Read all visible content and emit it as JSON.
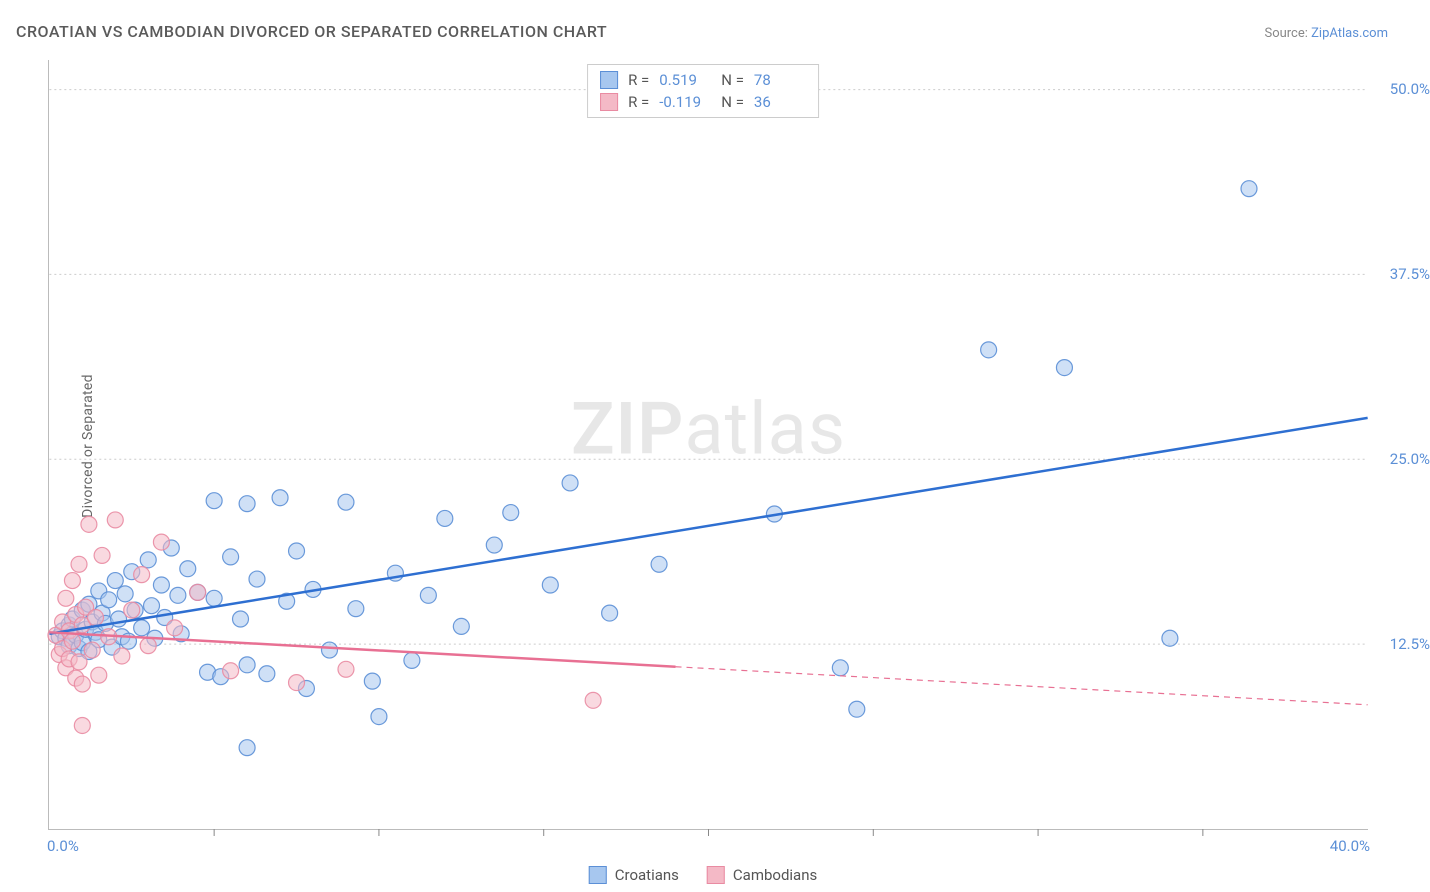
{
  "title": "CROATIAN VS CAMBODIAN DIVORCED OR SEPARATED CORRELATION CHART",
  "source_prefix": "Source: ",
  "source_link": "ZipAtlas.com",
  "ylabel": "Divorced or Separated",
  "watermark_zip": "ZIP",
  "watermark_atlas": "atlas",
  "chart": {
    "type": "scatter",
    "xlim": [
      0,
      40
    ],
    "ylim": [
      0,
      52
    ],
    "xtick_labels": [
      {
        "v": 0.0,
        "t": "0.0%"
      },
      {
        "v": 40.0,
        "t": "40.0%"
      }
    ],
    "xtick_minor": [
      5,
      10,
      15,
      20,
      25,
      30,
      35
    ],
    "ytick_labels": [
      {
        "v": 12.5,
        "t": "12.5%"
      },
      {
        "v": 25.0,
        "t": "25.0%"
      },
      {
        "v": 37.5,
        "t": "37.5%"
      },
      {
        "v": 50.0,
        "t": "50.0%"
      }
    ],
    "ytick_minor": [],
    "grid_color": "#cccccc",
    "background_color": "#ffffff",
    "marker_radius": 8,
    "marker_opacity": 0.55,
    "marker_stroke_opacity": 0.9,
    "line_width": 2.5,
    "series": [
      {
        "name": "Croatians",
        "color_fill": "#a7c7ef",
        "color_stroke": "#5b8fd6",
        "line_color": "#2e6fd1",
        "R": "0.519",
        "N": "78",
        "regression": {
          "x1": 0,
          "y1": 13.2,
          "x2": 40,
          "y2": 27.8,
          "dash_after_x": null
        },
        "points": [
          [
            0.3,
            13.0
          ],
          [
            0.4,
            13.4
          ],
          [
            0.5,
            12.9
          ],
          [
            0.6,
            13.8
          ],
          [
            0.6,
            12.4
          ],
          [
            0.7,
            14.2
          ],
          [
            0.8,
            13.1
          ],
          [
            0.9,
            12.2
          ],
          [
            1.0,
            14.8
          ],
          [
            1.0,
            12.6
          ],
          [
            1.1,
            13.5
          ],
          [
            1.2,
            15.2
          ],
          [
            1.2,
            12.0
          ],
          [
            1.3,
            14.0
          ],
          [
            1.4,
            13.3
          ],
          [
            1.5,
            16.1
          ],
          [
            1.5,
            12.8
          ],
          [
            1.6,
            14.6
          ],
          [
            1.7,
            13.9
          ],
          [
            1.8,
            15.5
          ],
          [
            1.9,
            12.3
          ],
          [
            2.0,
            16.8
          ],
          [
            2.1,
            14.2
          ],
          [
            2.2,
            13.0
          ],
          [
            2.3,
            15.9
          ],
          [
            2.4,
            12.7
          ],
          [
            2.5,
            17.4
          ],
          [
            2.6,
            14.8
          ],
          [
            2.8,
            13.6
          ],
          [
            3.0,
            18.2
          ],
          [
            3.1,
            15.1
          ],
          [
            3.2,
            12.9
          ],
          [
            3.4,
            16.5
          ],
          [
            3.5,
            14.3
          ],
          [
            3.7,
            19.0
          ],
          [
            3.9,
            15.8
          ],
          [
            4.0,
            13.2
          ],
          [
            4.2,
            17.6
          ],
          [
            4.5,
            16.0
          ],
          [
            4.8,
            10.6
          ],
          [
            5.0,
            22.2
          ],
          [
            5.0,
            15.6
          ],
          [
            5.2,
            10.3
          ],
          [
            5.5,
            18.4
          ],
          [
            5.8,
            14.2
          ],
          [
            6.0,
            22.0
          ],
          [
            6.0,
            11.1
          ],
          [
            6.3,
            16.9
          ],
          [
            6.6,
            10.5
          ],
          [
            7.0,
            22.4
          ],
          [
            7.2,
            15.4
          ],
          [
            7.5,
            18.8
          ],
          [
            7.8,
            9.5
          ],
          [
            8.0,
            16.2
          ],
          [
            8.5,
            12.1
          ],
          [
            9.0,
            22.1
          ],
          [
            9.3,
            14.9
          ],
          [
            9.8,
            10.0
          ],
          [
            10.0,
            7.6
          ],
          [
            10.5,
            17.3
          ],
          [
            11.0,
            11.4
          ],
          [
            11.5,
            15.8
          ],
          [
            12.0,
            21.0
          ],
          [
            12.5,
            13.7
          ],
          [
            13.5,
            19.2
          ],
          [
            14.0,
            21.4
          ],
          [
            15.2,
            16.5
          ],
          [
            15.8,
            23.4
          ],
          [
            17.0,
            14.6
          ],
          [
            18.5,
            17.9
          ],
          [
            22.0,
            21.3
          ],
          [
            24.0,
            10.9
          ],
          [
            24.5,
            8.1
          ],
          [
            28.5,
            32.4
          ],
          [
            30.8,
            31.2
          ],
          [
            34.0,
            12.9
          ],
          [
            36.4,
            43.3
          ],
          [
            6.0,
            5.5
          ]
        ]
      },
      {
        "name": "Cambodians",
        "color_fill": "#f4b9c6",
        "color_stroke": "#e98ba2",
        "line_color": "#e87093",
        "R": "-0.119",
        "N": "36",
        "regression": {
          "x1": 0,
          "y1": 13.3,
          "x2": 40,
          "y2": 8.4,
          "dash_after_x": 19
        },
        "points": [
          [
            0.2,
            13.1
          ],
          [
            0.3,
            11.8
          ],
          [
            0.4,
            14.0
          ],
          [
            0.4,
            12.2
          ],
          [
            0.5,
            10.9
          ],
          [
            0.5,
            15.6
          ],
          [
            0.6,
            13.4
          ],
          [
            0.6,
            11.5
          ],
          [
            0.7,
            16.8
          ],
          [
            0.7,
            12.7
          ],
          [
            0.8,
            10.2
          ],
          [
            0.8,
            14.5
          ],
          [
            0.9,
            17.9
          ],
          [
            0.9,
            11.3
          ],
          [
            1.0,
            13.8
          ],
          [
            1.0,
            9.8
          ],
          [
            1.1,
            15.0
          ],
          [
            1.2,
            20.6
          ],
          [
            1.3,
            12.1
          ],
          [
            1.4,
            14.3
          ],
          [
            1.5,
            10.4
          ],
          [
            1.6,
            18.5
          ],
          [
            1.8,
            13.0
          ],
          [
            2.0,
            20.9
          ],
          [
            2.2,
            11.7
          ],
          [
            2.5,
            14.8
          ],
          [
            2.8,
            17.2
          ],
          [
            3.0,
            12.4
          ],
          [
            3.4,
            19.4
          ],
          [
            3.8,
            13.6
          ],
          [
            4.5,
            16.0
          ],
          [
            5.5,
            10.7
          ],
          [
            7.5,
            9.9
          ],
          [
            9.0,
            10.8
          ],
          [
            1.0,
            7.0
          ],
          [
            16.5,
            8.7
          ]
        ]
      }
    ]
  },
  "legend_top": {
    "r_label": "R =",
    "n_label": "N ="
  },
  "legend_bottom": {
    "items": [
      "Croatians",
      "Cambodians"
    ]
  }
}
